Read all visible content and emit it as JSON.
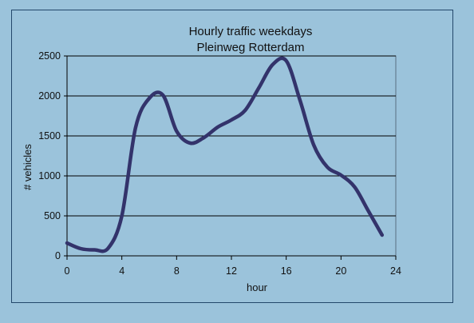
{
  "chart_data": {
    "type": "line",
    "title": "Hourly traffic weekdays",
    "subtitle": "Pleinweg Rotterdam",
    "xlabel": "hour",
    "ylabel": "# vehicles",
    "xlim": [
      0,
      24
    ],
    "ylim": [
      0,
      2500
    ],
    "x_ticks": [
      0,
      4,
      8,
      12,
      16,
      20,
      24
    ],
    "y_ticks": [
      0,
      500,
      1000,
      1500,
      2000,
      2500
    ],
    "grid": "horizontal",
    "legend": "none",
    "line_color": "#33336b",
    "x": [
      0,
      1,
      2,
      3,
      4,
      5,
      6,
      7,
      8,
      9,
      10,
      11,
      12,
      13,
      14,
      15,
      16,
      17,
      18,
      19,
      20,
      21,
      22,
      23
    ],
    "y": [
      160,
      90,
      75,
      95,
      500,
      1600,
      1970,
      2010,
      1560,
      1410,
      1480,
      1610,
      1700,
      1820,
      2100,
      2390,
      2440,
      1950,
      1390,
      1110,
      1010,
      860,
      560,
      260
    ]
  }
}
